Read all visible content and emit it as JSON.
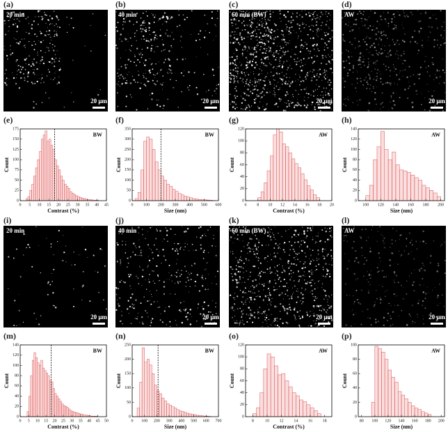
{
  "images": [
    {
      "panel": "(a)",
      "label": "20 min",
      "scale_bar": "20 μm"
    },
    {
      "panel": "(b)",
      "label": "40 min",
      "scale_bar": "20 μm"
    },
    {
      "panel": "(c)",
      "label": "60 min (BW)",
      "scale_bar": "20 μm"
    },
    {
      "panel": "(d)",
      "label": "AW",
      "scale_bar": "20 μm"
    },
    {
      "panel": "(i)",
      "label": "20 min",
      "scale_bar": "20 μm"
    },
    {
      "panel": "(j)",
      "label": "40 min",
      "scale_bar": "20 μm"
    },
    {
      "panel": "(k)",
      "label": "60 min (BW)",
      "scale_bar": "20 μm"
    },
    {
      "panel": "(l)",
      "label": "AW",
      "scale_bar": "20 μm"
    }
  ],
  "chart_data": [
    {
      "type": "histogram",
      "panel": "(e)",
      "label": "BW",
      "xlabel": "Contrast (%)",
      "ylabel": "Count",
      "color": "#e05050",
      "bins": [
        3,
        4,
        5,
        6,
        7,
        8,
        9,
        10,
        11,
        12,
        13,
        14,
        15,
        16,
        17,
        18,
        19,
        20,
        21,
        22,
        23,
        24,
        25,
        26,
        27,
        28,
        29,
        30,
        31,
        32,
        33,
        34,
        35,
        36,
        37,
        38,
        39,
        40,
        41
      ],
      "values": [
        5,
        10,
        25,
        40,
        60,
        80,
        100,
        120,
        150,
        160,
        170,
        145,
        150,
        135,
        125,
        100,
        85,
        75,
        60,
        50,
        40,
        35,
        30,
        22,
        18,
        15,
        12,
        10,
        8,
        6,
        5,
        4,
        3,
        2,
        2,
        1,
        1,
        1
      ],
      "reference_line": 18,
      "xlim": [
        0,
        45
      ],
      "xticks": [
        0,
        5,
        10,
        15,
        20,
        25,
        30,
        35,
        40,
        45
      ],
      "ylim": [
        0,
        175
      ],
      "yticks": [
        0,
        25,
        50,
        75,
        100,
        125,
        150,
        175
      ]
    },
    {
      "type": "histogram",
      "panel": "(f)",
      "label": "BW",
      "xlabel": "Size (nm)",
      "ylabel": "Count",
      "color": "#e05050",
      "bins": [
        20,
        40,
        60,
        80,
        100,
        120,
        140,
        160,
        180,
        200,
        220,
        240,
        260,
        280,
        300,
        320,
        340,
        360,
        380,
        400,
        420,
        440,
        460,
        480,
        500,
        520,
        540,
        560,
        580
      ],
      "values": [
        10,
        40,
        150,
        290,
        310,
        300,
        250,
        190,
        150,
        120,
        100,
        80,
        70,
        55,
        45,
        35,
        28,
        22,
        18,
        14,
        10,
        8,
        6,
        5,
        4,
        3,
        2,
        1
      ],
      "reference_line": 200,
      "xlim": [
        0,
        600
      ],
      "xticks": [
        0,
        100,
        200,
        300,
        400,
        500,
        600
      ],
      "ylim": [
        0,
        350
      ],
      "yticks": [
        0,
        50,
        100,
        150,
        200,
        250,
        300,
        350
      ]
    },
    {
      "type": "histogram",
      "panel": "(g)",
      "label": "AW",
      "xlabel": "Contrast (%)",
      "ylabel": "Count",
      "color": "#e05050",
      "bins": [
        8,
        8.5,
        9,
        9.5,
        10,
        10.5,
        11,
        11.5,
        12,
        12.5,
        13,
        13.5,
        14,
        14.5,
        15,
        15.5,
        16,
        16.5,
        17,
        17.5,
        18
      ],
      "values": [
        5,
        15,
        30,
        50,
        75,
        110,
        120,
        115,
        95,
        90,
        80,
        70,
        62,
        55,
        45,
        35,
        25,
        18,
        10,
        5
      ],
      "xlim": [
        6,
        20
      ],
      "xticks": [
        6,
        8,
        10,
        12,
        14,
        16,
        18,
        20
      ],
      "ylim": [
        0,
        120
      ],
      "yticks": [
        0,
        20,
        40,
        60,
        80,
        100,
        120
      ]
    },
    {
      "type": "histogram",
      "panel": "(h)",
      "label": "AW",
      "xlabel": "Size (nm)",
      "ylabel": "Count",
      "color": "#e05050",
      "bins": [
        100,
        105,
        110,
        115,
        120,
        125,
        130,
        135,
        140,
        145,
        150,
        155,
        160,
        165,
        170,
        175,
        180,
        185,
        190,
        195,
        200
      ],
      "values": [
        10,
        30,
        80,
        105,
        135,
        100,
        80,
        95,
        70,
        60,
        58,
        55,
        50,
        45,
        40,
        30,
        25,
        20,
        15,
        8
      ],
      "xlim": [
        90,
        205
      ],
      "xticks": [
        100,
        120,
        140,
        160,
        180,
        200
      ],
      "ylim": [
        0,
        140
      ],
      "yticks": [
        0,
        20,
        40,
        60,
        80,
        100,
        120,
        140
      ]
    },
    {
      "type": "histogram",
      "panel": "(m)",
      "label": "BW",
      "xlabel": "Contrast (%)",
      "ylabel": "Count",
      "color": "#e05050",
      "bins": [
        4,
        5,
        6,
        7,
        8,
        9,
        10,
        11,
        12,
        13,
        14,
        15,
        16,
        17,
        18,
        19,
        20,
        21,
        22,
        23,
        24,
        25,
        26,
        27,
        28,
        29,
        30,
        31,
        32,
        33,
        34,
        35,
        36,
        37,
        38,
        39,
        40,
        41,
        42,
        43,
        44,
        45
      ],
      "values": [
        10,
        40,
        80,
        110,
        125,
        115,
        105,
        100,
        110,
        95,
        90,
        85,
        80,
        70,
        68,
        55,
        45,
        40,
        35,
        30,
        25,
        22,
        20,
        18,
        15,
        12,
        10,
        9,
        8,
        7,
        6,
        5,
        4,
        3,
        3,
        2,
        2,
        1,
        1,
        1,
        1
      ],
      "reference_line": 18,
      "xlim": [
        0,
        50
      ],
      "xticks": [
        0,
        5,
        10,
        15,
        20,
        25,
        30,
        35,
        40,
        45,
        50
      ],
      "ylim": [
        0,
        140
      ],
      "yticks": [
        0,
        20,
        40,
        60,
        80,
        100,
        120,
        140
      ]
    },
    {
      "type": "histogram",
      "panel": "(n)",
      "label": "BW",
      "xlabel": "Size (nm)",
      "ylabel": "Count",
      "color": "#e05050",
      "bins": [
        40,
        60,
        80,
        100,
        120,
        140,
        160,
        180,
        200,
        220,
        240,
        260,
        280,
        300,
        320,
        340,
        360,
        380,
        400,
        420,
        440,
        460,
        480,
        500,
        520,
        540,
        560,
        580,
        600,
        620,
        640
      ],
      "values": [
        30,
        120,
        240,
        190,
        200,
        180,
        150,
        110,
        90,
        80,
        65,
        55,
        45,
        40,
        35,
        30,
        25,
        20,
        18,
        15,
        12,
        10,
        8,
        7,
        5,
        4,
        3,
        2,
        2,
        1
      ],
      "reference_line": 210,
      "xlim": [
        0,
        700
      ],
      "xticks": [
        0,
        100,
        200,
        300,
        400,
        500,
        600,
        700
      ],
      "ylim": [
        0,
        250
      ],
      "yticks": [
        0,
        50,
        100,
        150,
        200,
        250
      ]
    },
    {
      "type": "histogram",
      "panel": "(o)",
      "label": "AW",
      "xlabel": "Contrast (%)",
      "ylabel": "Count",
      "color": "#e05050",
      "bins": [
        8,
        8.5,
        9,
        9.5,
        10,
        10.5,
        11,
        11.5,
        12,
        12.5,
        13,
        13.5,
        14,
        14.5,
        15,
        15.5,
        16,
        16.5,
        17,
        17.5
      ],
      "values": [
        5,
        15,
        40,
        80,
        105,
        100,
        85,
        70,
        72,
        60,
        50,
        40,
        35,
        28,
        25,
        20,
        15,
        10,
        5
      ],
      "xlim": [
        7,
        19
      ],
      "xticks": [
        8,
        10,
        12,
        14,
        16,
        18
      ],
      "ylim": [
        0,
        120
      ],
      "yticks": [
        0,
        20,
        40,
        60,
        80,
        100,
        120
      ]
    },
    {
      "type": "histogram",
      "panel": "(p)",
      "label": "AW",
      "xlabel": "Size (nm)",
      "ylabel": "Count",
      "color": "#e05050",
      "bins": [
        95,
        100,
        105,
        110,
        115,
        120,
        125,
        130,
        135,
        140,
        145,
        150,
        155,
        160,
        165,
        170,
        175,
        180,
        185
      ],
      "values": [
        20,
        98,
        95,
        90,
        80,
        65,
        55,
        48,
        35,
        30,
        25,
        20,
        15,
        12,
        10,
        7,
        5,
        3
      ],
      "xlim": [
        75,
        205
      ],
      "xticks": [
        80,
        100,
        120,
        140,
        160,
        180,
        200
      ],
      "ylim": [
        0,
        100
      ],
      "yticks": [
        0,
        20,
        40,
        60,
        80,
        100
      ]
    }
  ]
}
